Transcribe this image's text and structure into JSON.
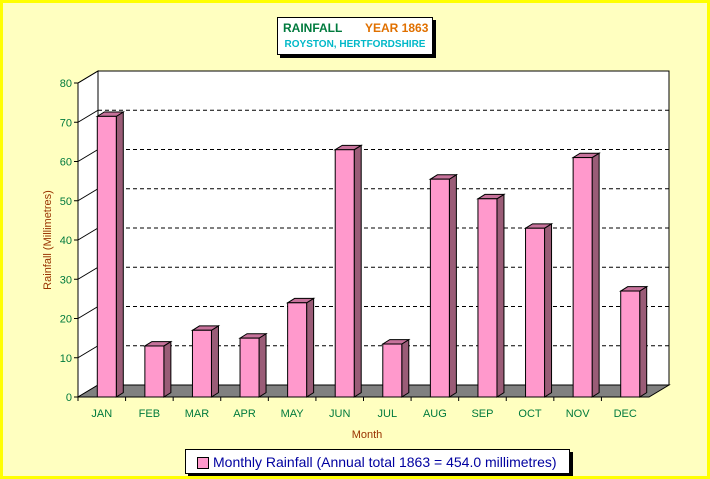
{
  "title": {
    "main": "RAINFALL",
    "year": "YEAR 1863",
    "location": "ROYSTON, HERTFORDSHIRE"
  },
  "legend": {
    "label": "Monthly Rainfall (Annual total 1863 = 454.0 millimetres)"
  },
  "colors": {
    "bar_front": "#ff99cc",
    "bar_side": "#9a5c77",
    "bar_top": "#c7729b",
    "floor": "#808080",
    "background": "#ffffc0",
    "border": "#ffff00"
  },
  "chart_data": {
    "type": "bar",
    "categories": [
      "JAN",
      "FEB",
      "MAR",
      "APR",
      "MAY",
      "JUN",
      "JUL",
      "AUG",
      "SEP",
      "OCT",
      "NOV",
      "DEC"
    ],
    "series": [
      {
        "name": "Monthly Rainfall (Annual total 1863 = 454.0 millimetres)",
        "values": [
          71.5,
          13.0,
          17.0,
          15.0,
          24.0,
          63.0,
          13.5,
          55.5,
          50.5,
          43.0,
          61.0,
          27.0
        ]
      }
    ],
    "xlabel": "Month",
    "ylabel": "Rainfall (Millimetres)",
    "ylim": [
      0,
      80
    ],
    "yticks": [
      0,
      10,
      20,
      30,
      40,
      50,
      60,
      70,
      80
    ],
    "grid": true,
    "legend_position": "bottom"
  }
}
